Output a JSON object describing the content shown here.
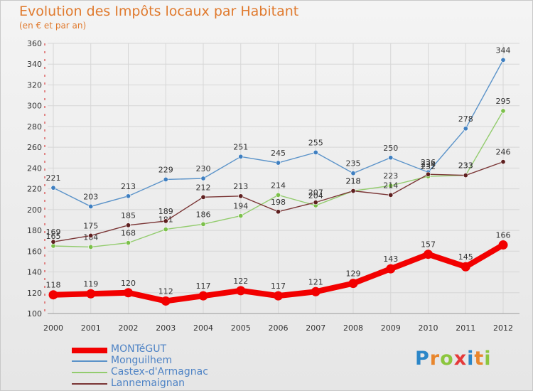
{
  "chart_data": {
    "type": "line",
    "title": "Evolution des Impôts locaux par Habitant",
    "subtitle": "(en € et par an)",
    "x": [
      "2000",
      "2001",
      "2002",
      "2003",
      "2004",
      "2005",
      "2006",
      "2007",
      "2008",
      "2009",
      "2010",
      "2011",
      "2012"
    ],
    "ylim": [
      100,
      360
    ],
    "yticks": [
      "100",
      "120",
      "140",
      "160",
      "180",
      "200",
      "220",
      "240",
      "260",
      "280",
      "300",
      "320",
      "340",
      "360"
    ],
    "grid": true,
    "legend_position": "bottom-left",
    "series": [
      {
        "name": "Monguilhem",
        "color": "#5b93c9",
        "marker": "#3f7fc0",
        "values": [
          221,
          203,
          213,
          229,
          230,
          251,
          245,
          255,
          235,
          250,
          236,
          278,
          344
        ],
        "labels": [
          "221",
          "203",
          "213",
          "229",
          "230",
          "251",
          "245",
          "255",
          "235",
          "250",
          "236",
          "278",
          "344"
        ]
      },
      {
        "name": "Castex-d'Armagnac",
        "color": "#93cc6e",
        "marker": "#7cc04a",
        "values": [
          165,
          164,
          168,
          181,
          186,
          194,
          214,
          204,
          218,
          223,
          232,
          233,
          295
        ],
        "labels": [
          "165",
          "164",
          "168",
          "181",
          "186",
          "194",
          "214",
          "204",
          "218",
          "223",
          "232",
          "233",
          "295"
        ]
      },
      {
        "name": "Lannemaignan",
        "color": "#7a3535",
        "marker": "#5e1f1f",
        "values": [
          169,
          175,
          185,
          189,
          212,
          213,
          198,
          207,
          218,
          214,
          234,
          233,
          246
        ],
        "labels": [
          "169",
          "175",
          "185",
          "189",
          "212",
          "213",
          "198",
          "207",
          "218",
          "214",
          "234",
          "233",
          "246"
        ]
      },
      {
        "name": "MONTéGUT",
        "color": "#f20000",
        "marker": "#f20000",
        "thick": true,
        "values": [
          118,
          119,
          120,
          112,
          117,
          122,
          117,
          121,
          129,
          143,
          157,
          145,
          166
        ],
        "labels": [
          "118",
          "119",
          "120",
          "112",
          "117",
          "122",
          "117",
          "121",
          "129",
          "143",
          "157",
          "145",
          "166"
        ]
      }
    ]
  },
  "legend": {
    "items": [
      {
        "label": "MONTéGUT",
        "color": "#f20000"
      },
      {
        "label": "Monguilhem",
        "color": "#5b93c9"
      },
      {
        "label": "Castex-d'Armagnac",
        "color": "#93cc6e"
      },
      {
        "label": "Lannemaignan",
        "color": "#7a3535"
      }
    ]
  },
  "logo": {
    "letters": [
      "P",
      "r",
      "o",
      "x",
      "i",
      "t",
      "i"
    ]
  }
}
